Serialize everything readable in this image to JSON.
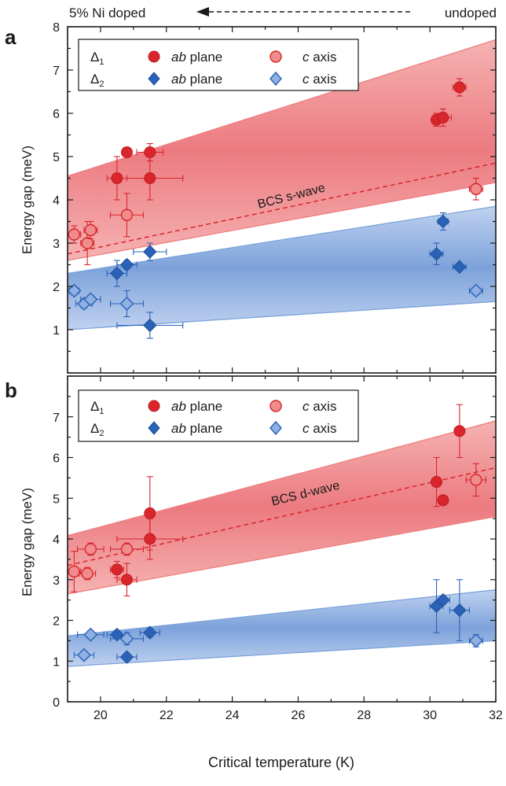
{
  "header": {
    "left_label": "5% Ni doped",
    "right_label": "undoped"
  },
  "xlabel": "Critical temperature (K)",
  "colors": {
    "red": "#d8262c",
    "red_light": "#f08c8c",
    "blue": "#2a62b8",
    "blue_light": "#8fb0e0",
    "red_band": "#ee7d7d",
    "blue_band": "#7aa3da"
  },
  "legend": {
    "delta1": "Δ1",
    "delta2": "Δ2",
    "ab": "ab",
    "plane": " plane",
    "c": "c",
    "axis": " axis"
  },
  "chart_data": [
    {
      "panel": "a",
      "type": "scatter",
      "ylabel": "Energy gap (meV)",
      "annotation": "BCS s-wave",
      "xlim": [
        19,
        32
      ],
      "ylim": [
        0,
        8
      ],
      "xticks": [
        "20",
        "22",
        "24",
        "26",
        "28",
        "30",
        "32"
      ],
      "yticks": [
        "1",
        "2",
        "3",
        "4",
        "5",
        "6",
        "7",
        "8"
      ],
      "legend_position": "top-left",
      "bands": [
        {
          "series": "delta1",
          "upper": [
            [
              19,
              4.55
            ],
            [
              32,
              7.7
            ]
          ],
          "lower": [
            [
              19,
              2.6
            ],
            [
              32,
              4.4
            ]
          ]
        },
        {
          "series": "delta2",
          "upper": [
            [
              19,
              2.3
            ],
            [
              32,
              3.85
            ]
          ],
          "lower": [
            [
              19,
              1.0
            ],
            [
              32,
              1.65
            ]
          ]
        }
      ],
      "bcs_line": [
        [
          19,
          2.75
        ],
        [
          32,
          4.85
        ]
      ],
      "series": [
        {
          "name": "Δ1 ab plane",
          "marker": "circle",
          "filled": true,
          "color": "red",
          "points": [
            {
              "x": 20.5,
              "y": 4.5,
              "xerr": 0.3,
              "yerr": 0.5
            },
            {
              "x": 20.8,
              "y": 5.1,
              "xerr": 0,
              "yerr": 0
            },
            {
              "x": 21.5,
              "y": 5.1,
              "xerr": 0.4,
              "yerr": 0.2
            },
            {
              "x": 21.5,
              "y": 4.5,
              "xerr": 1.0,
              "yerr": 0.5
            },
            {
              "x": 30.2,
              "y": 5.85,
              "xerr": 0.15,
              "yerr": 0.15
            },
            {
              "x": 30.4,
              "y": 5.9,
              "xerr": 0.25,
              "yerr": 0.2
            },
            {
              "x": 30.9,
              "y": 6.6,
              "xerr": 0.2,
              "yerr": 0.2
            }
          ]
        },
        {
          "name": "Δ1 c axis",
          "marker": "circle",
          "filled": false,
          "color": "red",
          "points": [
            {
              "x": 19.2,
              "y": 3.2,
              "xerr": 0.2,
              "yerr": 0.2
            },
            {
              "x": 19.6,
              "y": 3.0,
              "xerr": 0.2,
              "yerr": 0.5
            },
            {
              "x": 19.7,
              "y": 3.3,
              "xerr": 0.2,
              "yerr": 0.2
            },
            {
              "x": 20.8,
              "y": 3.65,
              "xerr": 0.5,
              "yerr": 0.5
            },
            {
              "x": 31.4,
              "y": 4.25,
              "xerr": 0.2,
              "yerr": 0.25
            }
          ]
        },
        {
          "name": "Δ2 ab plane",
          "marker": "diamond",
          "filled": true,
          "color": "blue",
          "points": [
            {
              "x": 20.5,
              "y": 2.3,
              "xerr": 0.3,
              "yerr": 0.3
            },
            {
              "x": 20.8,
              "y": 2.5,
              "xerr": 0.3,
              "yerr": 0.1
            },
            {
              "x": 21.5,
              "y": 2.8,
              "xerr": 0.5,
              "yerr": 0.2
            },
            {
              "x": 21.5,
              "y": 1.1,
              "xerr": 1.0,
              "yerr": 0.3
            },
            {
              "x": 30.2,
              "y": 2.75,
              "xerr": 0.2,
              "yerr": 0.25
            },
            {
              "x": 30.4,
              "y": 3.5,
              "xerr": 0.15,
              "yerr": 0.2
            },
            {
              "x": 30.9,
              "y": 2.45,
              "xerr": 0.2,
              "yerr": 0.05
            }
          ]
        },
        {
          "name": "Δ2 c axis",
          "marker": "diamond",
          "filled": false,
          "color": "blue",
          "points": [
            {
              "x": 19.2,
              "y": 1.9,
              "xerr": 0.15,
              "yerr": 0.1
            },
            {
              "x": 19.5,
              "y": 1.6,
              "xerr": 0.25,
              "yerr": 0.1
            },
            {
              "x": 19.7,
              "y": 1.7,
              "xerr": 0.3,
              "yerr": 0.1
            },
            {
              "x": 20.8,
              "y": 1.6,
              "xerr": 0.5,
              "yerr": 0.3
            },
            {
              "x": 31.4,
              "y": 1.9,
              "xerr": 0.2,
              "yerr": 0.05
            }
          ]
        }
      ]
    },
    {
      "panel": "b",
      "type": "scatter",
      "ylabel": "Energy gap (meV)",
      "annotation": "BCS d-wave",
      "xlim": [
        19,
        32
      ],
      "ylim": [
        0,
        8
      ],
      "xticks": [
        "20",
        "22",
        "24",
        "26",
        "28",
        "30",
        "32"
      ],
      "yticks": [
        "0",
        "1",
        "2",
        "3",
        "4",
        "5",
        "6",
        "7"
      ],
      "legend_position": "top-left",
      "bands": [
        {
          "series": "delta1",
          "upper": [
            [
              19,
              4.08
            ],
            [
              32,
              6.9
            ]
          ],
          "lower": [
            [
              19,
              2.65
            ],
            [
              32,
              4.55
            ]
          ]
        },
        {
          "series": "delta2",
          "upper": [
            [
              19,
              1.62
            ],
            [
              32,
              2.75
            ]
          ],
          "lower": [
            [
              19,
              0.87
            ],
            [
              32,
              1.5
            ]
          ]
        }
      ],
      "bcs_line": [
        [
          19,
          3.35
        ],
        [
          32,
          5.75
        ]
      ],
      "series": [
        {
          "name": "Δ1 ab plane",
          "marker": "circle",
          "filled": true,
          "color": "red",
          "points": [
            {
              "x": 20.5,
              "y": 3.25,
              "xerr": 0.2,
              "yerr": 0.2
            },
            {
              "x": 20.8,
              "y": 3.0,
              "xerr": 0.3,
              "yerr": 0.4
            },
            {
              "x": 21.5,
              "y": 4.0,
              "xerr": 1.0,
              "yerr": 0.5
            },
            {
              "x": 21.5,
              "y": 4.63,
              "xerr": 0,
              "yerr": 0.9
            },
            {
              "x": 30.2,
              "y": 5.4,
              "xerr": 0.1,
              "yerr": 0.6
            },
            {
              "x": 30.4,
              "y": 4.95,
              "xerr": 0,
              "yerr": 0
            },
            {
              "x": 30.9,
              "y": 6.65,
              "xerr": 0.1,
              "yerr": 0.65
            }
          ]
        },
        {
          "name": "Δ1 c axis",
          "marker": "circle",
          "filled": false,
          "color": "red",
          "points": [
            {
              "x": 19.2,
              "y": 3.2,
              "xerr": 0.2,
              "yerr": 0.5
            },
            {
              "x": 19.6,
              "y": 3.15,
              "xerr": 0.25,
              "yerr": 0.15
            },
            {
              "x": 19.7,
              "y": 3.75,
              "xerr": 0.4,
              "yerr": 0.15
            },
            {
              "x": 20.8,
              "y": 3.75,
              "xerr": 0.5,
              "yerr": 0.15
            },
            {
              "x": 31.4,
              "y": 5.45,
              "xerr": 0.3,
              "yerr": 0.4
            }
          ]
        },
        {
          "name": "Δ2 ab plane",
          "marker": "diamond",
          "filled": true,
          "color": "blue",
          "points": [
            {
              "x": 20.5,
              "y": 1.65,
              "xerr": 0.3,
              "yerr": 0.1
            },
            {
              "x": 20.8,
              "y": 1.1,
              "xerr": 0.3,
              "yerr": 0.1
            },
            {
              "x": 21.5,
              "y": 1.7,
              "xerr": 0.3,
              "yerr": 0.1
            },
            {
              "x": 30.2,
              "y": 2.35,
              "xerr": 0.2,
              "yerr": 0.65
            },
            {
              "x": 30.4,
              "y": 2.5,
              "xerr": 0.2,
              "yerr": 0.1
            },
            {
              "x": 30.9,
              "y": 2.25,
              "xerr": 0.3,
              "yerr": 0.75
            }
          ]
        },
        {
          "name": "Δ2 c axis",
          "marker": "diamond",
          "filled": false,
          "color": "blue",
          "points": [
            {
              "x": 19.5,
              "y": 1.15,
              "xerr": 0.3,
              "yerr": 0.1
            },
            {
              "x": 19.7,
              "y": 1.65,
              "xerr": 0.4,
              "yerr": 0.1
            },
            {
              "x": 20.8,
              "y": 1.55,
              "xerr": 0.5,
              "yerr": 0.15
            },
            {
              "x": 31.4,
              "y": 1.5,
              "xerr": 0.2,
              "yerr": 0.15
            }
          ]
        }
      ]
    }
  ]
}
